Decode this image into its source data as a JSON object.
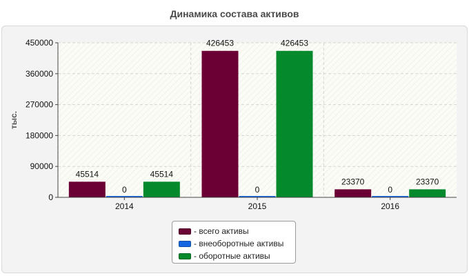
{
  "chart_data": {
    "type": "bar",
    "title": "Динамика состава активов",
    "ylabel": "тыс.",
    "xlabel": "",
    "categories": [
      "2014",
      "2015",
      "2016"
    ],
    "series": [
      {
        "name": "- всего активы",
        "values": [
          45514,
          426453,
          23370
        ],
        "color": "#6b0034"
      },
      {
        "name": "- внеоборотные активы",
        "values": [
          0,
          0,
          0
        ],
        "color": "#1566e0"
      },
      {
        "name": "- оборотные активы",
        "values": [
          45514,
          426453,
          23370
        ],
        "color": "#04892c"
      }
    ],
    "ylim": [
      0,
      450000
    ],
    "yticks": [
      "0",
      "90000",
      "180000",
      "270000",
      "360000",
      "450000"
    ],
    "grid": true,
    "legend_position": "bottom-center"
  }
}
